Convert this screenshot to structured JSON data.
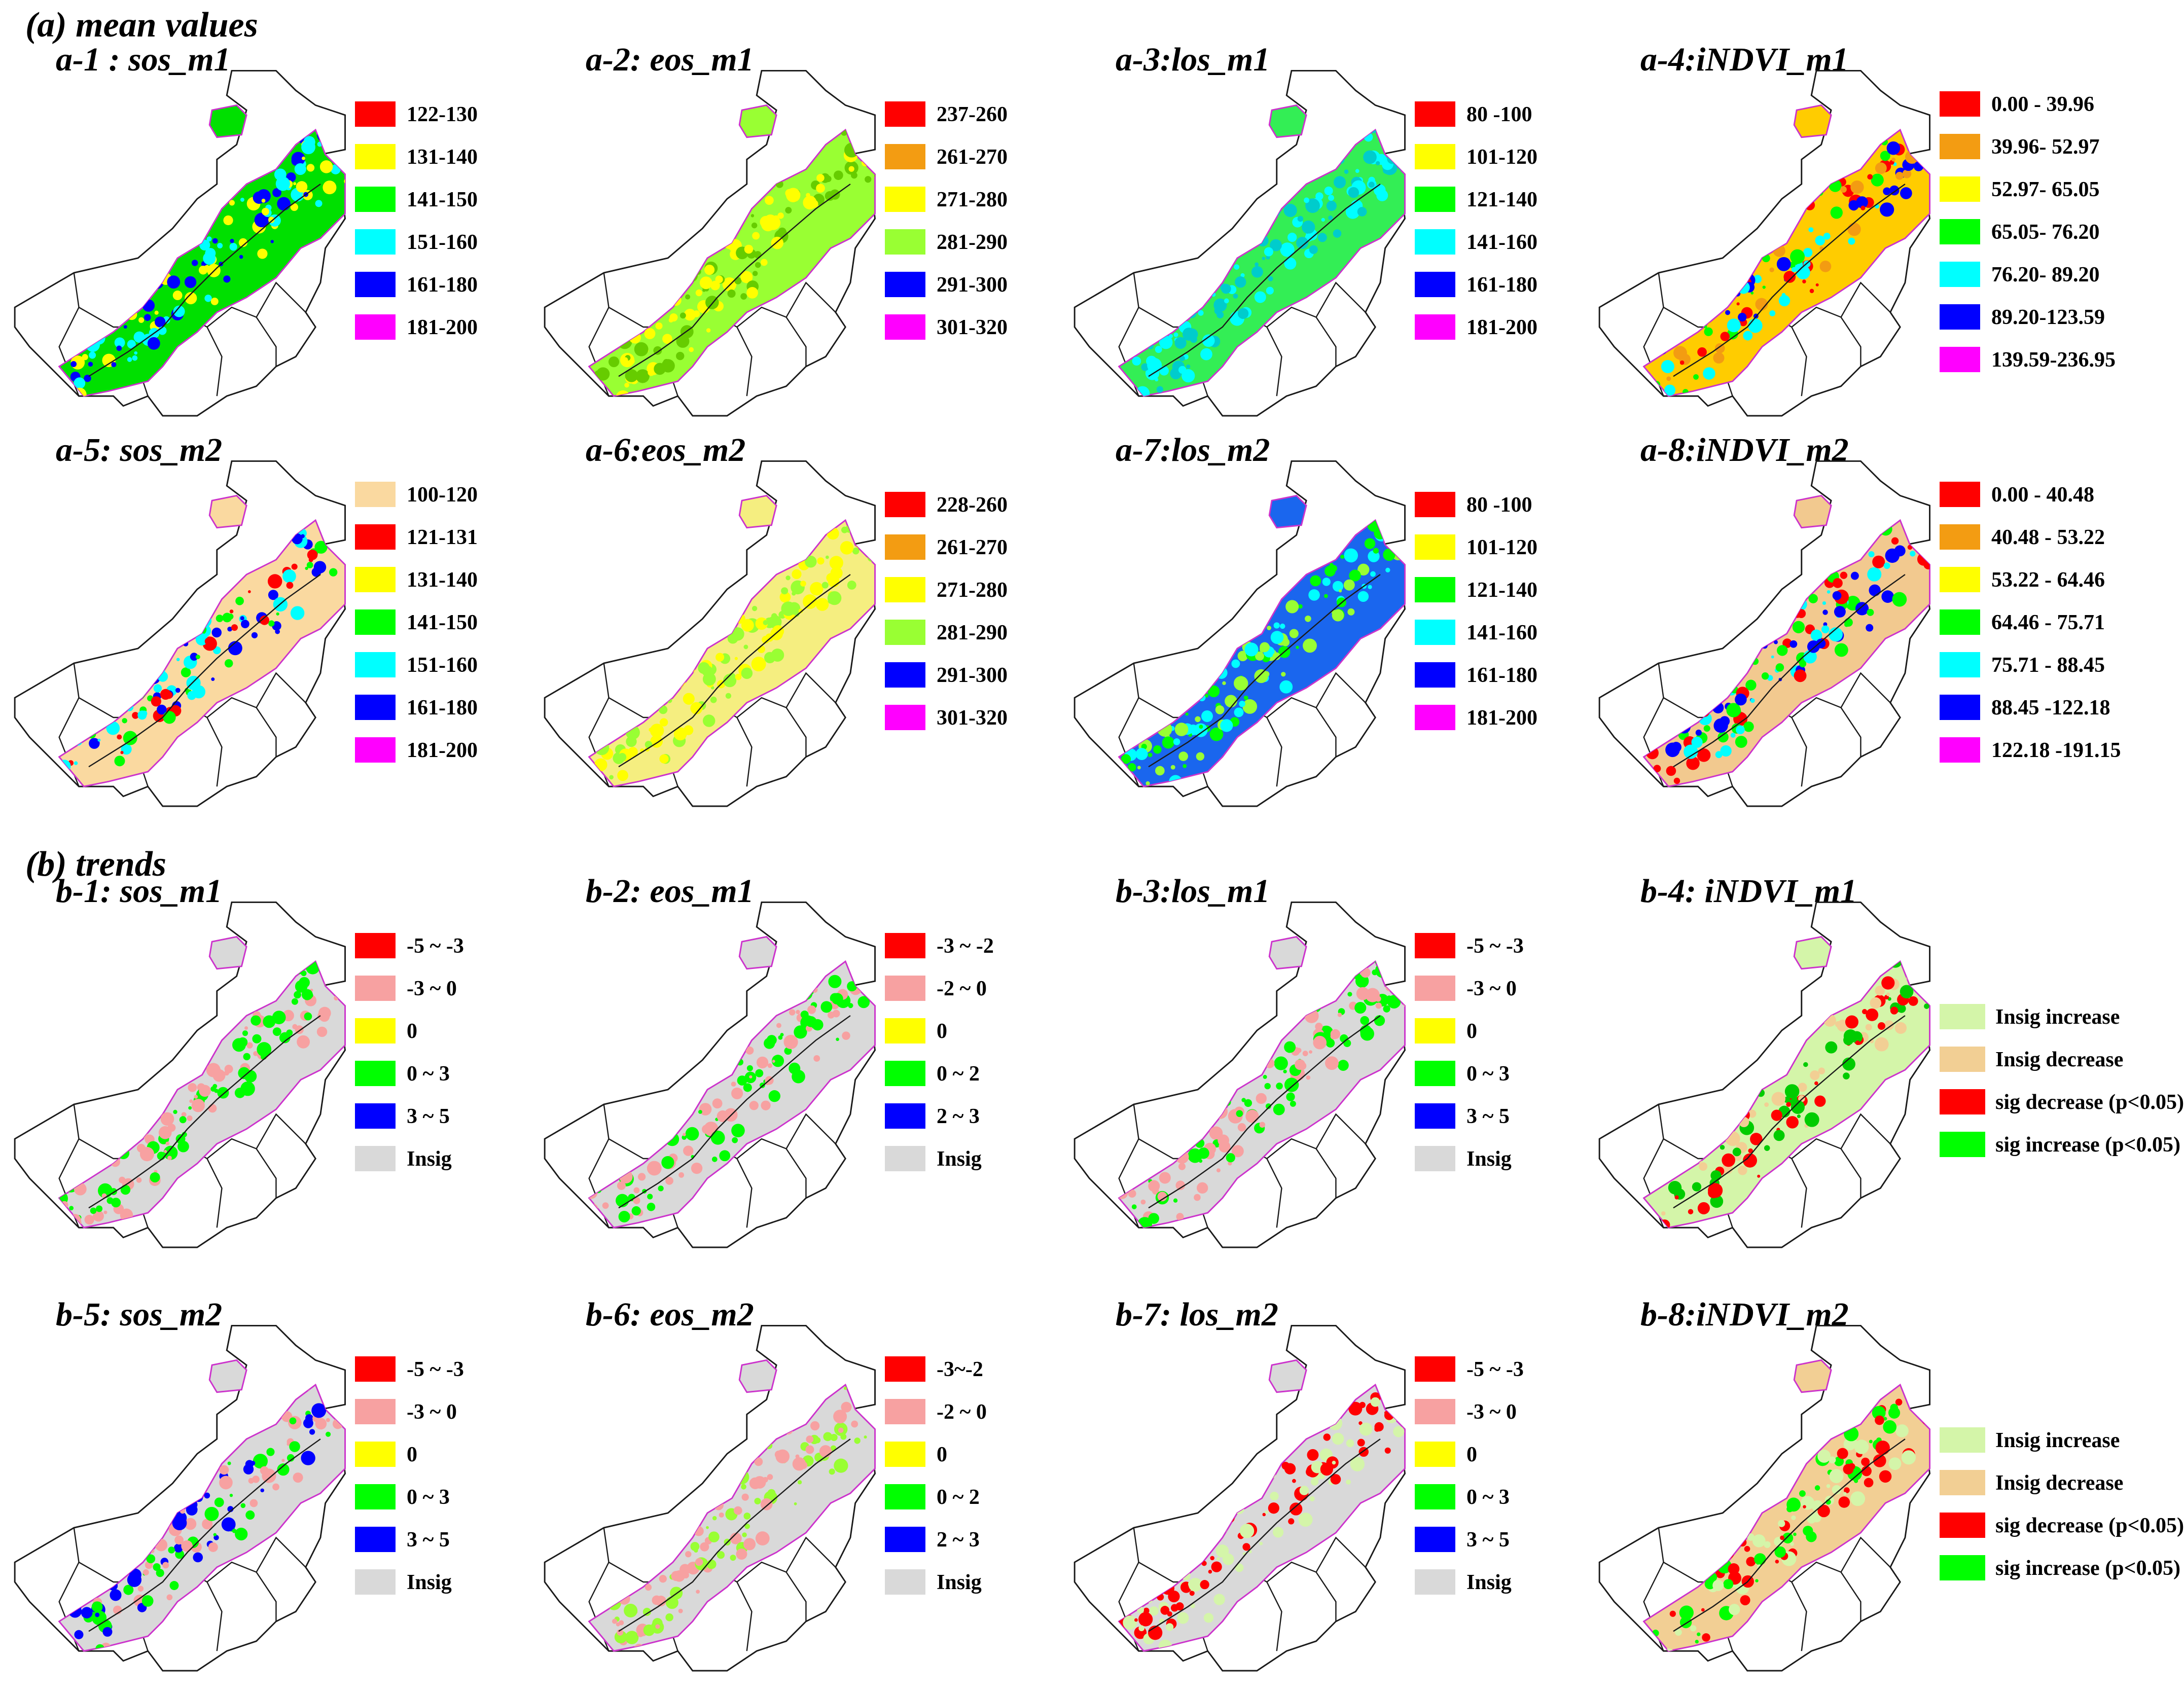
{
  "sections": {
    "a_title": "(a) mean values",
    "b_title": "(b) trends"
  },
  "colors": {
    "red": "#ff0000",
    "orange": "#f39c12",
    "yellow": "#ffff00",
    "yellowgreen": "#99ff33",
    "green": "#00ff00",
    "cyan": "#00ffff",
    "blue": "#0000ff",
    "magenta": "#ff00ff",
    "wheat": "#fad9a0",
    "pink": "#f7a1a1",
    "lightgrey": "#d9d9d9",
    "lightgreen": "#d4f5a9",
    "tan": "#f2cf94",
    "outline": "#1a1a1a",
    "boundary": "#cc33cc"
  },
  "panels": [
    {
      "id": "a-1",
      "title": "a-1 : sos_m1",
      "base": "#00e000",
      "spots": [
        "#ffff00",
        "#00ffff",
        "#0000ff"
      ],
      "legend": [
        {
          "color": "#ff0000",
          "label": "122-130"
        },
        {
          "color": "#ffff00",
          "label": "131-140"
        },
        {
          "color": "#00ff00",
          "label": "141-150"
        },
        {
          "color": "#00ffff",
          "label": "151-160"
        },
        {
          "color": "#0000ff",
          "label": "161-180"
        },
        {
          "color": "#ff00ff",
          "label": "181-200"
        }
      ]
    },
    {
      "id": "a-2",
      "title": "a-2: eos_m1",
      "base": "#99ff33",
      "spots": [
        "#ffff00",
        "#66cc00"
      ],
      "legend": [
        {
          "color": "#ff0000",
          "label": "237-260"
        },
        {
          "color": "#f39c12",
          "label": "261-270"
        },
        {
          "color": "#ffff00",
          "label": "271-280"
        },
        {
          "color": "#99ff33",
          "label": "281-290"
        },
        {
          "color": "#0000ff",
          "label": "291-300"
        },
        {
          "color": "#ff00ff",
          "label": "301-320"
        }
      ]
    },
    {
      "id": "a-3",
      "title": "a-3:los_m1",
      "base": "#33ee55",
      "spots": [
        "#00ffff",
        "#00cccc"
      ],
      "legend": [
        {
          "color": "#ff0000",
          "label": "80  -100"
        },
        {
          "color": "#ffff00",
          "label": "101-120"
        },
        {
          "color": "#00ff00",
          "label": "121-140"
        },
        {
          "color": "#00ffff",
          "label": "141-160"
        },
        {
          "color": "#0000ff",
          "label": "161-180"
        },
        {
          "color": "#ff00ff",
          "label": "181-200"
        }
      ]
    },
    {
      "id": "a-4",
      "title": "a-4:iNDVI_m1",
      "base": "#ffcc00",
      "spots": [
        "#ff0000",
        "#f39c12",
        "#00ffff",
        "#0000ff",
        "#00ff00"
      ],
      "legend": [
        {
          "color": "#ff0000",
          "label": "0.00  - 39.96"
        },
        {
          "color": "#f39c12",
          "label": "39.96- 52.97"
        },
        {
          "color": "#ffff00",
          "label": "52.97- 65.05"
        },
        {
          "color": "#00ff00",
          "label": "65.05- 76.20"
        },
        {
          "color": "#00ffff",
          "label": "76.20- 89.20"
        },
        {
          "color": "#0000ff",
          "label": "89.20-123.59"
        },
        {
          "color": "#ff00ff",
          "label": "139.59-236.95"
        }
      ]
    },
    {
      "id": "a-5",
      "title": "a-5: sos_m2",
      "base": "#fad9a0",
      "spots": [
        "#ff0000",
        "#00ff00",
        "#00ffff",
        "#0000ff"
      ],
      "legend": [
        {
          "color": "#fad9a0",
          "label": "100-120"
        },
        {
          "color": "#ff0000",
          "label": "121-131"
        },
        {
          "color": "#ffff00",
          "label": "131-140"
        },
        {
          "color": "#00ff00",
          "label": "141-150"
        },
        {
          "color": "#00ffff",
          "label": "151-160"
        },
        {
          "color": "#0000ff",
          "label": "161-180"
        },
        {
          "color": "#ff00ff",
          "label": "181-200"
        }
      ]
    },
    {
      "id": "a-6",
      "title": "a-6:eos_m2",
      "base": "#f5ee80",
      "spots": [
        "#99ff33",
        "#ffff00"
      ],
      "legend": [
        {
          "color": "#ff0000",
          "label": "228-260"
        },
        {
          "color": "#f39c12",
          "label": "261-270"
        },
        {
          "color": "#ffff00",
          "label": "271-280"
        },
        {
          "color": "#99ff33",
          "label": "281-290"
        },
        {
          "color": "#0000ff",
          "label": "291-300"
        },
        {
          "color": "#ff00ff",
          "label": "301-320"
        }
      ]
    },
    {
      "id": "a-7",
      "title": "a-7:los_m2",
      "base": "#1a66ee",
      "spots": [
        "#00ff00",
        "#00ffff",
        "#99ff33"
      ],
      "legend": [
        {
          "color": "#ff0000",
          "label": "80  -100"
        },
        {
          "color": "#ffff00",
          "label": "101-120"
        },
        {
          "color": "#00ff00",
          "label": "121-140"
        },
        {
          "color": "#00ffff",
          "label": "141-160"
        },
        {
          "color": "#0000ff",
          "label": "161-180"
        },
        {
          "color": "#ff00ff",
          "label": "181-200"
        }
      ]
    },
    {
      "id": "a-8",
      "title": "a-8:iNDVI_m2",
      "base": "#f2c98f",
      "spots": [
        "#ff0000",
        "#00ff00",
        "#0000ff",
        "#00ffff"
      ],
      "legend": [
        {
          "color": "#ff0000",
          "label": "0.00 - 40.48"
        },
        {
          "color": "#f39c12",
          "label": "40.48 - 53.22"
        },
        {
          "color": "#ffff00",
          "label": "53.22 - 64.46"
        },
        {
          "color": "#00ff00",
          "label": "64.46 - 75.71"
        },
        {
          "color": "#00ffff",
          "label": "75.71 - 88.45"
        },
        {
          "color": "#0000ff",
          "label": "88.45 -122.18"
        },
        {
          "color": "#ff00ff",
          "label": "122.18 -191.15"
        }
      ]
    },
    {
      "id": "b-1",
      "title": "b-1: sos_m1",
      "base": "#d9d9d9",
      "spots": [
        "#00ff00",
        "#f7a1a1"
      ],
      "legend": [
        {
          "color": "#ff0000",
          "label": "-5 ~ -3"
        },
        {
          "color": "#f7a1a1",
          "label": "-3 ~  0"
        },
        {
          "color": "#ffff00",
          "label": "0"
        },
        {
          "color": "#00ff00",
          "label": "0  ~  3"
        },
        {
          "color": "#0000ff",
          "label": "3  ~  5"
        },
        {
          "color": "#d9d9d9",
          "label": "Insig"
        }
      ]
    },
    {
      "id": "b-2",
      "title": "b-2: eos_m1",
      "base": "#d9d9d9",
      "spots": [
        "#f7a1a1",
        "#00ff00"
      ],
      "legend": [
        {
          "color": "#ff0000",
          "label": "-3 ~ -2"
        },
        {
          "color": "#f7a1a1",
          "label": "-2 ~  0"
        },
        {
          "color": "#ffff00",
          "label": "0"
        },
        {
          "color": "#00ff00",
          "label": "0  ~  2"
        },
        {
          "color": "#0000ff",
          "label": "2  ~  3"
        },
        {
          "color": "#d9d9d9",
          "label": "Insig"
        }
      ]
    },
    {
      "id": "b-3",
      "title": "b-3:los_m1",
      "base": "#d9d9d9",
      "spots": [
        "#f7a1a1",
        "#00ff00"
      ],
      "legend": [
        {
          "color": "#ff0000",
          "label": "-5 ~ -3"
        },
        {
          "color": "#f7a1a1",
          "label": "-3 ~  0"
        },
        {
          "color": "#ffff00",
          "label": "0"
        },
        {
          "color": "#00ff00",
          "label": "0  ~  3"
        },
        {
          "color": "#0000ff",
          "label": "3  ~  5"
        },
        {
          "color": "#d9d9d9",
          "label": "Insig"
        }
      ]
    },
    {
      "id": "b-4",
      "title": "b-4: iNDVI_m1",
      "base": "#d4f5a9",
      "spots": [
        "#ff0000",
        "#00cc00",
        "#f2cf94"
      ],
      "legend": [
        {
          "color": "#d4f5a9",
          "label": "Insig  increase"
        },
        {
          "color": "#f2cf94",
          "label": "Insig  decrease"
        },
        {
          "color": "#ff0000",
          "label": "sig  decrease (p<0.05)"
        },
        {
          "color": "#00ff00",
          "label": "sig  increase (p<0.05)"
        }
      ]
    },
    {
      "id": "b-5",
      "title": "b-5: sos_m2",
      "base": "#d9d9d9",
      "spots": [
        "#00ff00",
        "#0000ff",
        "#f7a1a1"
      ],
      "legend": [
        {
          "color": "#ff0000",
          "label": "-5 ~ -3"
        },
        {
          "color": "#f7a1a1",
          "label": "-3 ~  0"
        },
        {
          "color": "#ffff00",
          "label": "0"
        },
        {
          "color": "#00ff00",
          "label": "0  ~  3"
        },
        {
          "color": "#0000ff",
          "label": "3  ~  5"
        },
        {
          "color": "#d9d9d9",
          "label": "Insig"
        }
      ]
    },
    {
      "id": "b-6",
      "title": "b-6: eos_m2",
      "base": "#d9d9d9",
      "spots": [
        "#99ff33",
        "#f7a1a1"
      ],
      "legend": [
        {
          "color": "#ff0000",
          "label": "-3~-2"
        },
        {
          "color": "#f7a1a1",
          "label": "-2 ~  0"
        },
        {
          "color": "#ffff00",
          "label": "0"
        },
        {
          "color": "#00ff00",
          "label": "0  ~  2"
        },
        {
          "color": "#0000ff",
          "label": "2  ~  3"
        },
        {
          "color": "#d9d9d9",
          "label": "Insig"
        }
      ]
    },
    {
      "id": "b-7",
      "title": "b-7: los_m2",
      "base": "#d9d9d9",
      "spots": [
        "#ff0000",
        "#d4f5a9"
      ],
      "legend": [
        {
          "color": "#ff0000",
          "label": "-5 ~ -3"
        },
        {
          "color": "#f7a1a1",
          "label": "-3 ~  0"
        },
        {
          "color": "#ffff00",
          "label": "0"
        },
        {
          "color": "#00ff00",
          "label": "0  ~  3"
        },
        {
          "color": "#0000ff",
          "label": "3  ~  5"
        },
        {
          "color": "#d9d9d9",
          "label": "Insig"
        }
      ]
    },
    {
      "id": "b-8",
      "title": "b-8:iNDVI_m2",
      "base": "#f2cf94",
      "spots": [
        "#ff0000",
        "#d4f5a9",
        "#00ff00"
      ],
      "legend": [
        {
          "color": "#d4f5a9",
          "label": "Insig  increase"
        },
        {
          "color": "#f2cf94",
          "label": "Insig  decrease"
        },
        {
          "color": "#ff0000",
          "label": "sig  decrease (p<0.05)"
        },
        {
          "color": "#00ff00",
          "label": "sig  increase (p<0.05)"
        }
      ]
    }
  ]
}
